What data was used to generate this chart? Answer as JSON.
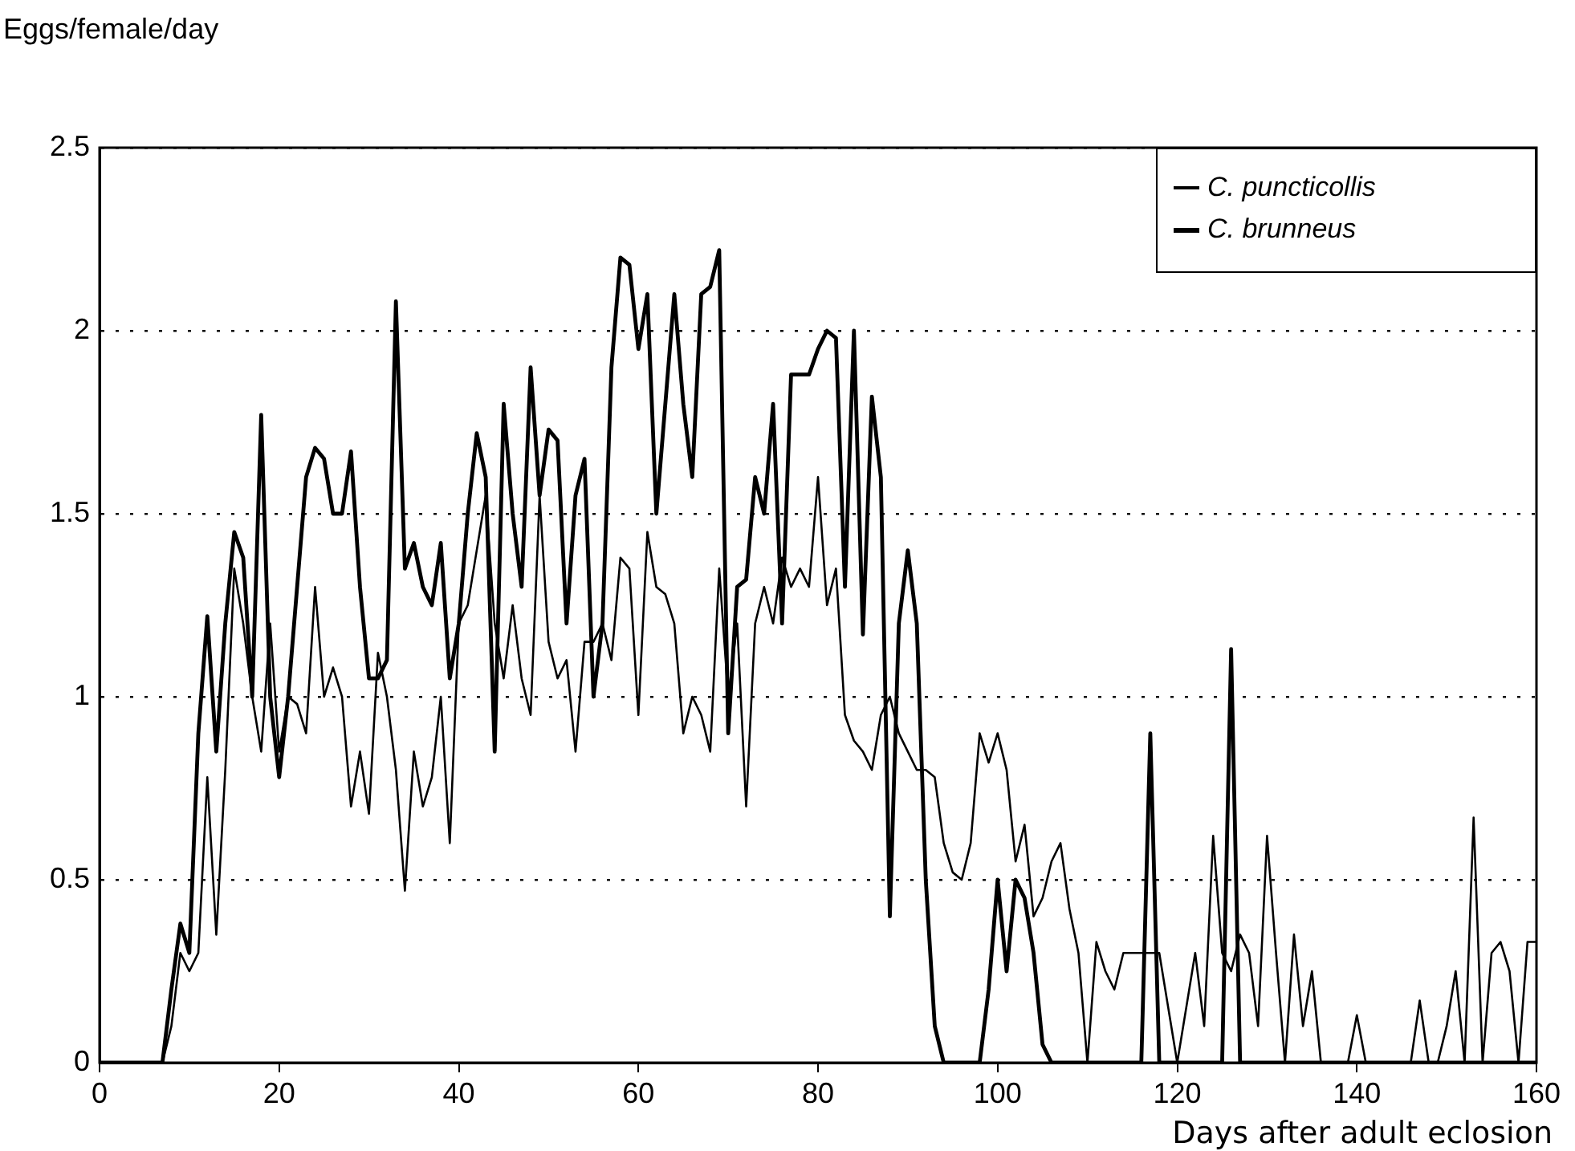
{
  "chart_data": {
    "type": "line",
    "ylabel": "Eggs/female/day",
    "xlabel": "Days after adult eclosion",
    "x": [
      0,
      1,
      2,
      3,
      4,
      5,
      6,
      7,
      8,
      9,
      10,
      11,
      12,
      13,
      14,
      15,
      16,
      17,
      18,
      19,
      20,
      21,
      22,
      23,
      24,
      25,
      26,
      27,
      28,
      29,
      30,
      31,
      32,
      33,
      34,
      35,
      36,
      37,
      38,
      39,
      40,
      41,
      42,
      43,
      44,
      45,
      46,
      47,
      48,
      49,
      50,
      51,
      52,
      53,
      54,
      55,
      56,
      57,
      58,
      59,
      60,
      61,
      62,
      63,
      64,
      65,
      66,
      67,
      68,
      69,
      70,
      71,
      72,
      73,
      74,
      75,
      76,
      77,
      78,
      79,
      80,
      81,
      82,
      83,
      84,
      85,
      86,
      87,
      88,
      89,
      90,
      91,
      92,
      93,
      94,
      95,
      96,
      97,
      98,
      99,
      100,
      101,
      102,
      103,
      104,
      105,
      106,
      107,
      108,
      109,
      110,
      111,
      112,
      113,
      114,
      115,
      116,
      117,
      118,
      119,
      120,
      121,
      122,
      123,
      124,
      125,
      126,
      127,
      128,
      129,
      130,
      131,
      132,
      133,
      134,
      135,
      136,
      137,
      138,
      139,
      140,
      141,
      142,
      143,
      144,
      145,
      146,
      147,
      148,
      149,
      150,
      151,
      152,
      153,
      154,
      155,
      156,
      157,
      158,
      159,
      160
    ],
    "series": [
      {
        "name": "C. puncticollis",
        "color": "#000000",
        "values": [
          0,
          0,
          0,
          0,
          0,
          0,
          0,
          0,
          0.1,
          0.3,
          0.25,
          0.3,
          0.78,
          0.35,
          0.8,
          1.35,
          1.2,
          1.0,
          0.85,
          1.2,
          0.85,
          1.0,
          0.98,
          0.9,
          1.3,
          1.0,
          1.08,
          1.0,
          0.7,
          0.85,
          0.68,
          1.12,
          1.0,
          0.8,
          0.47,
          0.85,
          0.7,
          0.78,
          1.0,
          0.6,
          1.2,
          1.25,
          1.4,
          1.55,
          1.2,
          1.05,
          1.25,
          1.05,
          0.95,
          1.55,
          1.15,
          1.05,
          1.1,
          0.85,
          1.15,
          1.15,
          1.2,
          1.1,
          1.38,
          1.35,
          0.95,
          1.45,
          1.3,
          1.28,
          1.2,
          0.9,
          1.0,
          0.95,
          0.85,
          1.35,
          1.0,
          1.2,
          0.7,
          1.2,
          1.3,
          1.2,
          1.38,
          1.3,
          1.35,
          1.3,
          1.6,
          1.25,
          1.35,
          0.95,
          0.88,
          0.85,
          0.8,
          0.95,
          1.0,
          0.9,
          0.85,
          0.8,
          0.8,
          0.78,
          0.6,
          0.52,
          0.5,
          0.6,
          0.9,
          0.82,
          0.9,
          0.8,
          0.55,
          0.65,
          0.4,
          0.45,
          0.55,
          0.6,
          0.42,
          0.3,
          0,
          0.33,
          0.25,
          0.2,
          0.3,
          0.3,
          0.3,
          0.3,
          0.3,
          0.15,
          0,
          0.15,
          0.3,
          0.1,
          0.62,
          0.3,
          0.25,
          0.35,
          0.3,
          0.1,
          0.62,
          0.3,
          0,
          0.35,
          0.1,
          0.25,
          0,
          0,
          0,
          0,
          0.13,
          0,
          0,
          0,
          0,
          0,
          0,
          0.17,
          0,
          0,
          0.1,
          0.25,
          0,
          0.67,
          0,
          0.3,
          0.33,
          0.25,
          0,
          0.33,
          0.33
        ]
      },
      {
        "name": "C. brunneus",
        "color": "#000000",
        "values": [
          0,
          0,
          0,
          0,
          0,
          0,
          0,
          0,
          0.2,
          0.38,
          0.3,
          0.9,
          1.22,
          0.85,
          1.2,
          1.45,
          1.38,
          1.0,
          1.77,
          1.0,
          0.78,
          1.0,
          1.3,
          1.6,
          1.68,
          1.65,
          1.5,
          1.5,
          1.67,
          1.3,
          1.05,
          1.05,
          1.1,
          2.08,
          1.35,
          1.42,
          1.3,
          1.25,
          1.42,
          1.05,
          1.2,
          1.5,
          1.72,
          1.6,
          0.85,
          1.8,
          1.5,
          1.3,
          1.9,
          1.55,
          1.73,
          1.7,
          1.2,
          1.55,
          1.65,
          1.0,
          1.2,
          1.9,
          2.2,
          2.18,
          1.95,
          2.1,
          1.5,
          1.8,
          2.1,
          1.8,
          1.6,
          2.1,
          2.12,
          2.22,
          0.9,
          1.3,
          1.32,
          1.6,
          1.5,
          1.8,
          1.2,
          1.88,
          1.88,
          1.88,
          1.95,
          2.0,
          1.98,
          1.3,
          2.0,
          1.17,
          1.82,
          1.6,
          0.4,
          1.2,
          1.4,
          1.2,
          0.5,
          0.1,
          0,
          0,
          0,
          0,
          0,
          0.2,
          0.5,
          0.25,
          0.5,
          0.45,
          0.3,
          0.05,
          0,
          0,
          0,
          0,
          0,
          0,
          0,
          0,
          0,
          0,
          0,
          0.9,
          0,
          0,
          0,
          0,
          0,
          0,
          0,
          0,
          1.13,
          0,
          0,
          0,
          0,
          0,
          0,
          0,
          0,
          0,
          0,
          0,
          0,
          0,
          0,
          0,
          0,
          0,
          0,
          0,
          0,
          0,
          0,
          0,
          0,
          0,
          0,
          0,
          0,
          0,
          0,
          0,
          0,
          0,
          0
        ]
      }
    ],
    "xlim": [
      0,
      160
    ],
    "xticks": [
      0,
      20,
      40,
      60,
      80,
      100,
      120,
      140,
      160
    ],
    "ylim": [
      0,
      2.5
    ],
    "yticks": [
      0,
      0.5,
      1,
      1.5,
      2,
      2.5
    ],
    "grid": "y",
    "legend": "top right",
    "marker": "none",
    "line_style": "solid"
  }
}
